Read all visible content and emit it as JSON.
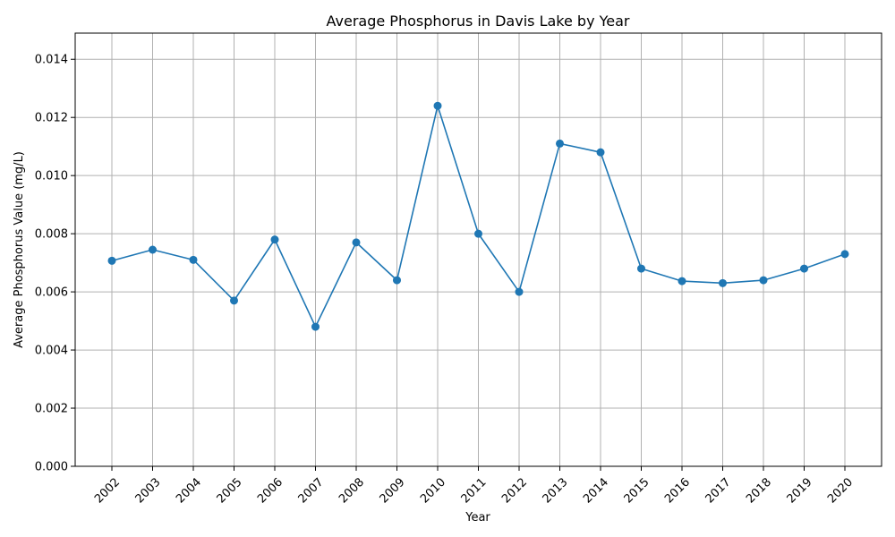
{
  "chart_data": {
    "type": "line",
    "title": "Average Phosphorus in Davis Lake by Year",
    "xlabel": "Year",
    "ylabel": "Average Phosphorus Value (mg/L)",
    "categories": [
      "2002",
      "2003",
      "2004",
      "2005",
      "2006",
      "2007",
      "2008",
      "2009",
      "2010",
      "2011",
      "2012",
      "2013",
      "2014",
      "2015",
      "2016",
      "2017",
      "2018",
      "2019",
      "2020"
    ],
    "series": [
      {
        "name": "",
        "values": [
          0.00707,
          0.00745,
          0.0071,
          0.0057,
          0.0078,
          0.0048,
          0.0077,
          0.0064,
          0.0124,
          0.008,
          0.006,
          0.0111,
          0.0108,
          0.0068,
          0.00637,
          0.0063,
          0.0064,
          0.0068,
          0.0073
        ],
        "color": "#1f77b4"
      }
    ],
    "ylim": [
      0,
      0.0149
    ],
    "yticks": [
      "0.000",
      "0.002",
      "0.004",
      "0.006",
      "0.008",
      "0.010",
      "0.012",
      "0.014"
    ],
    "ytick_values": [
      0,
      0.002,
      0.004,
      0.006,
      0.008,
      0.01,
      0.012,
      0.014
    ],
    "grid": true,
    "legend": "none"
  }
}
